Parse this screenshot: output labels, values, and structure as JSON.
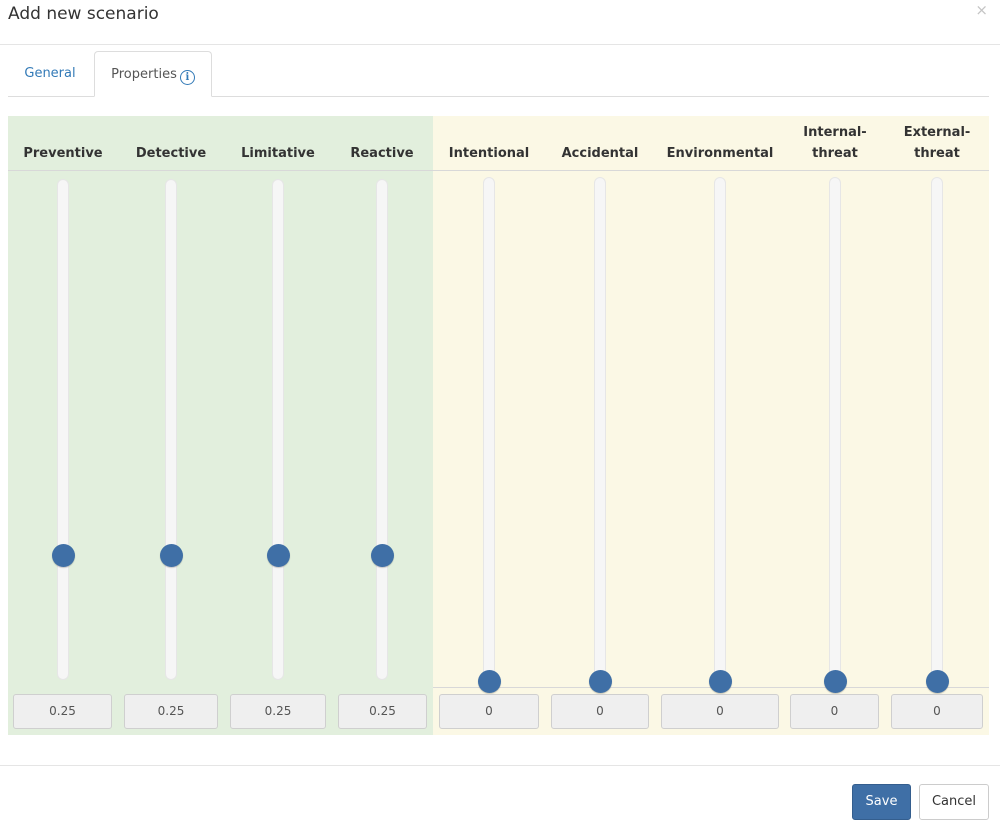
{
  "modal": {
    "title": "Add new scenario",
    "close_symbol": "×"
  },
  "tabs": [
    {
      "label": "General",
      "active": false
    },
    {
      "label": "Properties",
      "active": true,
      "icon": "info-icon"
    }
  ],
  "info_glyph": "i",
  "groups": {
    "green": "#e2efdd",
    "yellow": "#fbf8e5"
  },
  "sliders": [
    {
      "line1": "",
      "line2": "Preventive",
      "value": "0.25",
      "level": 0.25
    },
    {
      "line1": "",
      "line2": "Detective",
      "value": "0.25",
      "level": 0.25
    },
    {
      "line1": "",
      "line2": "Limitative",
      "value": "0.25",
      "level": 0.25
    },
    {
      "line1": "",
      "line2": "Reactive",
      "value": "0.25",
      "level": 0.25
    },
    {
      "line1": "",
      "line2": "Intentional",
      "value": "0",
      "level": 0
    },
    {
      "line1": "",
      "line2": "Accidental",
      "value": "0",
      "level": 0
    },
    {
      "line1": "",
      "line2": "Environmental",
      "value": "0",
      "level": 0
    },
    {
      "line1": "Internal-",
      "line2": "threat",
      "value": "0",
      "level": 0
    },
    {
      "line1": "External-",
      "line2": "threat",
      "value": "0",
      "level": 0
    }
  ],
  "footer": {
    "save_label": "Save",
    "cancel_label": "Cancel"
  },
  "colors": {
    "accent": "#3f6fa6",
    "link": "#337ab7"
  }
}
